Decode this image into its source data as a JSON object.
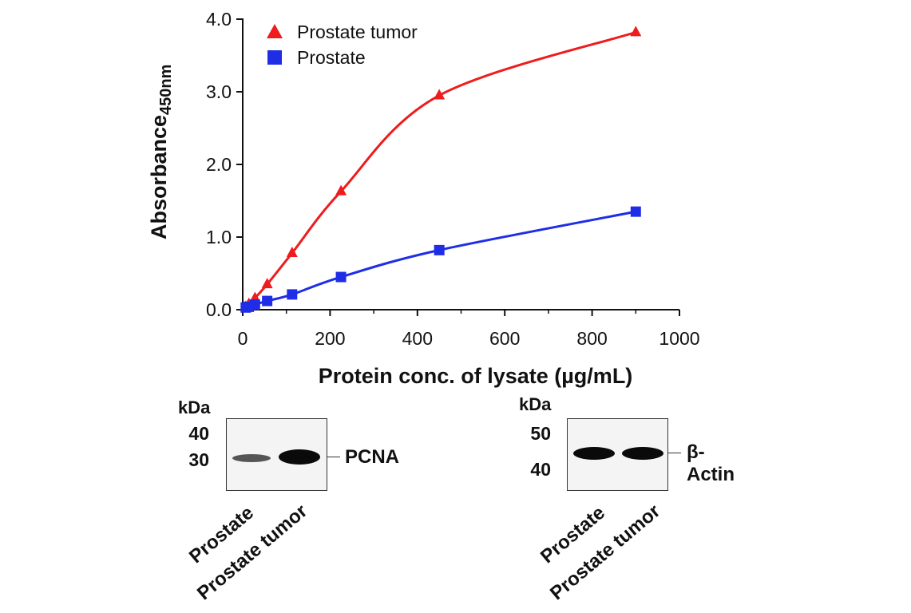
{
  "chart_data": {
    "type": "line",
    "title": "",
    "xlabel": "Protein conc. of lysate (µg/mL)",
    "ylabel_main": "Absorbance",
    "ylabel_sub": "450nm",
    "xlim": [
      0,
      1000
    ],
    "ylim": [
      0,
      4.0
    ],
    "xticks": [
      0,
      200,
      400,
      600,
      800,
      1000
    ],
    "xtick_labels": [
      "0",
      "200",
      "400",
      "600",
      "800",
      "1000"
    ],
    "yticks": [
      0,
      1,
      2,
      3,
      4
    ],
    "ytick_labels": [
      "0.0",
      "1.0",
      "2.0",
      "3.0",
      "4.0"
    ],
    "grid": false,
    "legend_position": "top-left",
    "series": [
      {
        "name": "Prostate tumor",
        "marker": "triangle",
        "color": "#ee1c1c",
        "x": [
          7,
          14,
          28,
          56,
          113,
          225,
          450,
          900
        ],
        "y": [
          0.04,
          0.08,
          0.16,
          0.35,
          0.78,
          1.63,
          2.95,
          3.82
        ]
      },
      {
        "name": "Prostate",
        "marker": "square",
        "color": "#1f2ee6",
        "x": [
          7,
          14,
          28,
          56,
          113,
          225,
          450,
          900
        ],
        "y": [
          0.03,
          0.04,
          0.07,
          0.12,
          0.21,
          0.45,
          0.82,
          1.35
        ]
      }
    ]
  },
  "blots": [
    {
      "kda_label": "kDa",
      "markers": [
        "40",
        "30"
      ],
      "target_label": "PCNA",
      "lanes": [
        "Prostate",
        "Prostate tumor"
      ]
    },
    {
      "kda_label": "kDa",
      "markers": [
        "50",
        "40"
      ],
      "target_label": "β-Actin",
      "lanes": [
        "Prostate",
        "Prostate tumor"
      ]
    }
  ]
}
